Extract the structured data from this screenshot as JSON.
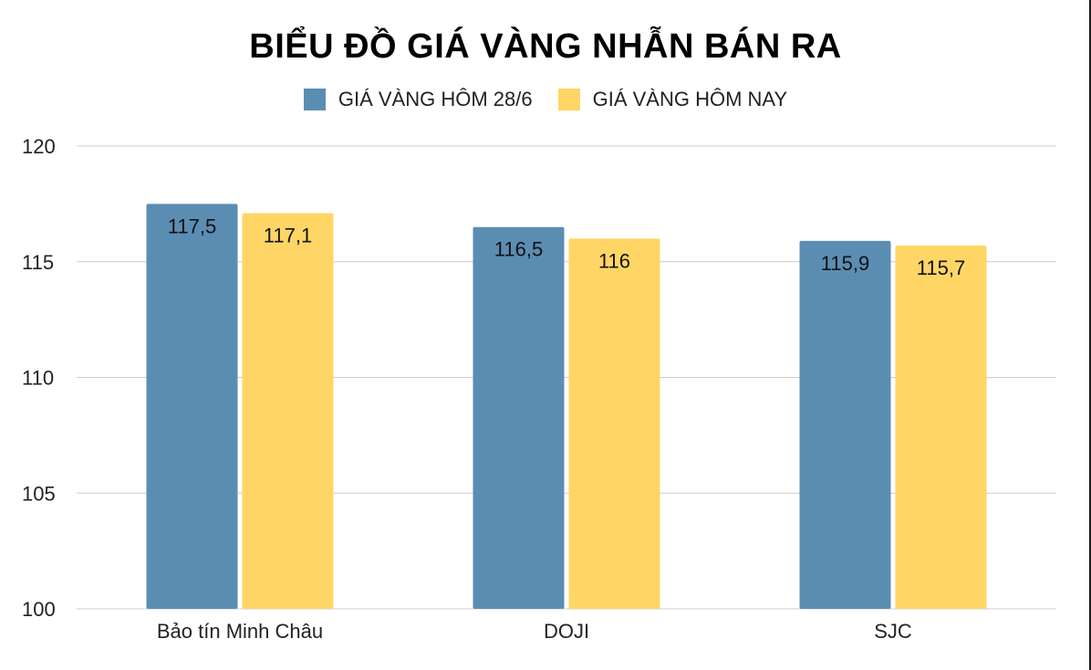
{
  "chart_data": {
    "type": "bar",
    "title": "BIỂU ĐỒ GIÁ VÀNG NHẪN BÁN RA",
    "categories": [
      "Bảo tín Minh Châu",
      "DOJI",
      "SJC"
    ],
    "series": [
      {
        "name": "GIÁ VÀNG HÔM 28/6",
        "color": "#5b8db3",
        "values": [
          117.5,
          116.5,
          115.9
        ],
        "labels": [
          "117,5",
          "116,5",
          "115,9"
        ]
      },
      {
        "name": "GIÁ VÀNG HÔM NAY",
        "color": "#ffd666",
        "values": [
          117.1,
          116,
          115.7
        ],
        "labels": [
          "117,1",
          "116",
          "115,7"
        ]
      }
    ],
    "ylim": [
      100,
      120
    ],
    "yticks": [
      "100",
      "105",
      "110",
      "115",
      "120"
    ],
    "grid": true,
    "legend": "top"
  }
}
